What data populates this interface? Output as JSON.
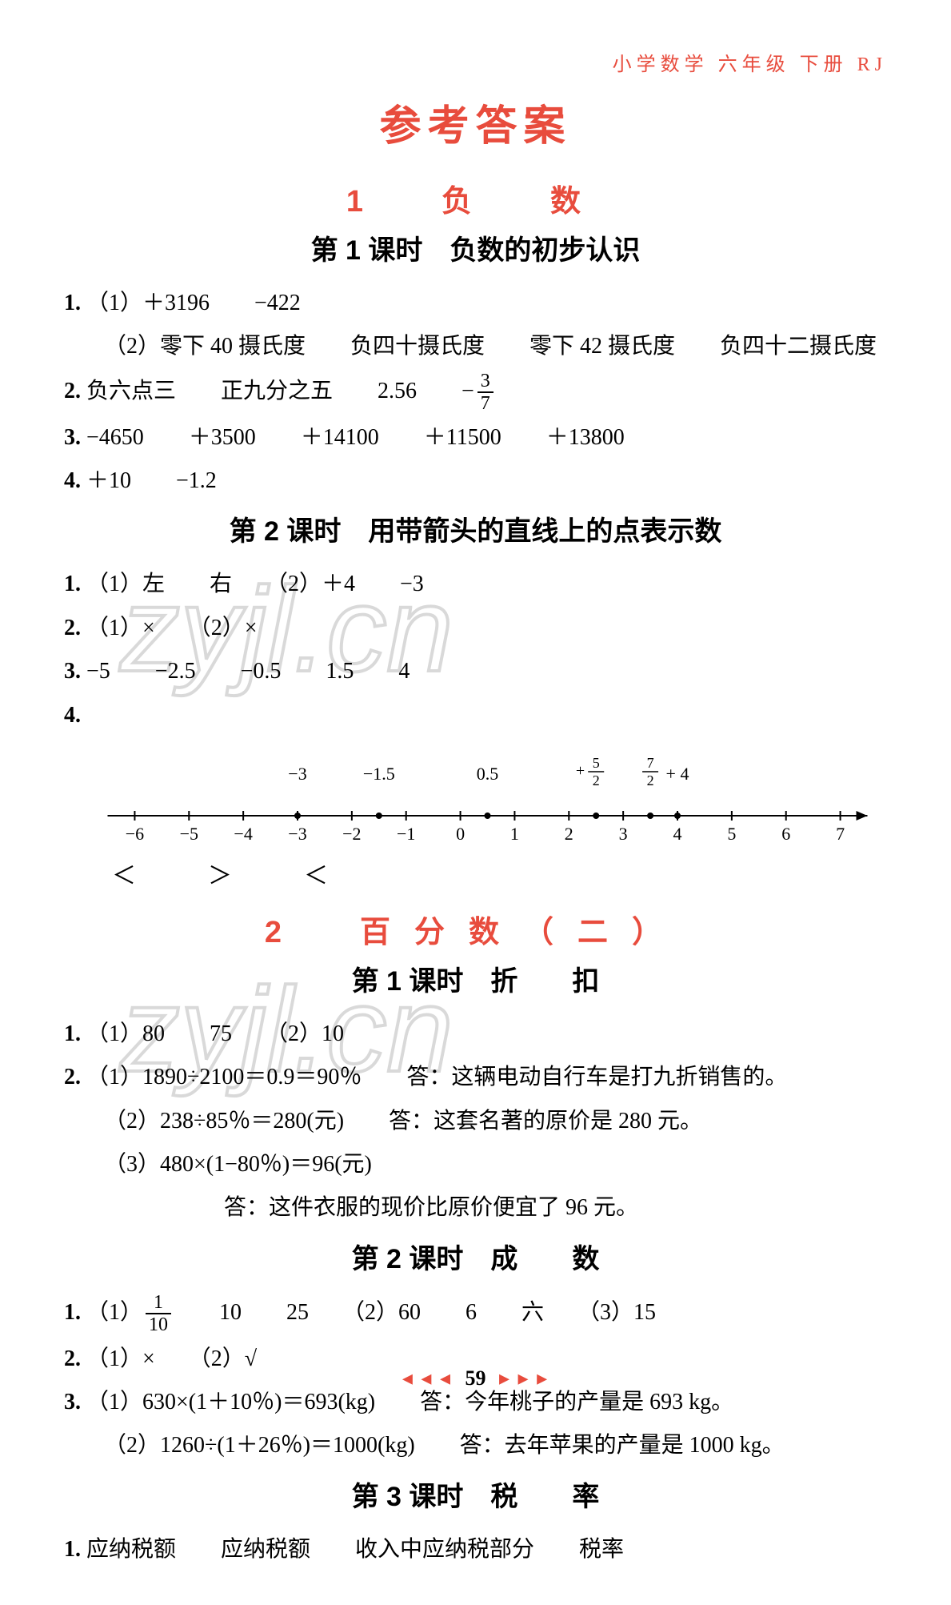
{
  "header": {
    "subject": "小学数学",
    "grade": "六年级",
    "volume": "下册",
    "edition": "RJ"
  },
  "main_title": "参考答案",
  "watermark": "zyjl.cn",
  "footer": {
    "left_arrows": "◂ ◂ ◂",
    "page": "59",
    "right_arrows": "▸ ▸ ▸"
  },
  "chapters": [
    {
      "title": "1　负　数",
      "lessons": [
        {
          "title": "第 1 课时　负数的初步认识",
          "answers": [
            {
              "n": "1.",
              "text": "（1）＋3196　　−422"
            },
            {
              "n": "",
              "text": "（2）零下 40 摄氏度　　负四十摄氏度　　零下 42 摄氏度　　负四十二摄氏度",
              "indent": 1
            },
            {
              "n": "2.",
              "text": "负六点三　　正九分之五　　2.56　　−",
              "has_frac": true,
              "frac_t": "3",
              "frac_b": "7"
            },
            {
              "n": "3.",
              "text": "−4650　　＋3500　　＋14100　　＋11500　　＋13800"
            },
            {
              "n": "4.",
              "text": "＋10　　−1.2"
            }
          ]
        },
        {
          "title": "第 2 课时　用带箭头的直线上的点表示数",
          "answers": [
            {
              "n": "1.",
              "text": "（1）左　　右　　（2）＋4　　−3"
            },
            {
              "n": "2.",
              "text": "（1）×　　（2）×"
            },
            {
              "n": "3.",
              "text": "−5　　−2.5　　−0.5　　1.5　　4"
            },
            {
              "n": "4.",
              "text": ""
            }
          ],
          "numberline": {
            "xmin": -6.5,
            "xmax": 7.5,
            "ticks": [
              -6,
              -5,
              -4,
              -3,
              -2,
              -1,
              0,
              1,
              2,
              3,
              4,
              5,
              6,
              7
            ],
            "tick_labels": [
              "−6",
              "−5",
              "−4",
              "−3",
              "−2",
              "−1",
              "0",
              "1",
              "2",
              "3",
              "4",
              "5",
              "6",
              "7"
            ],
            "points": [
              {
                "x": -3,
                "label": "−3",
                "type": "int"
              },
              {
                "x": -1.5,
                "label": "−1.5",
                "type": "dec"
              },
              {
                "x": 0.5,
                "label": "0.5",
                "type": "dec"
              },
              {
                "x": 2.5,
                "label": "+ 5/2",
                "type": "frac",
                "sign": "+",
                "ft": "5",
                "fb": "2"
              },
              {
                "x": 3.5,
                "label": "7/2",
                "type": "frac",
                "sign": "",
                "ft": "7",
                "fb": "2"
              },
              {
                "x": 4,
                "label": "+ 4",
                "type": "int"
              }
            ],
            "line_color": "#000",
            "point_radius": 4
          },
          "compare": "＜　＞　＜"
        }
      ]
    },
    {
      "title": "2　百分数（二）",
      "lessons": [
        {
          "title": "第 1 课时　折　　扣",
          "answers": [
            {
              "n": "1.",
              "text": "（1）80　　75　　（2）10"
            },
            {
              "n": "2.",
              "text": "（1）1890÷2100＝0.9＝90％　　答：这辆电动自行车是打九折销售的。"
            },
            {
              "n": "",
              "text": "（2）238÷85％＝280(元)　　答：这套名著的原价是 280 元。",
              "indent": 1
            },
            {
              "n": "",
              "text": "（3）480×(1−80％)＝96(元)",
              "indent": 1
            },
            {
              "n": "",
              "text": "答：这件衣服的现价比原价便宜了 96 元。",
              "indent": 2
            }
          ]
        },
        {
          "title": "第 2 课时　成　　数",
          "answers": [
            {
              "n": "1.",
              "text": "（1）",
              "has_frac": true,
              "frac_t": "1",
              "frac_b": "10",
              "tail": "　　10　　25　　（2）60　　6　　六　　（3）15"
            },
            {
              "n": "2.",
              "text": "（1）×　　（2）√"
            },
            {
              "n": "3.",
              "text": "（1）630×(1＋10％)＝693(kg)　　答：今年桃子的产量是 693 kg。"
            },
            {
              "n": "",
              "text": "（2）1260÷(1＋26％)＝1000(kg)　　答：去年苹果的产量是 1000 kg。",
              "indent": 1
            }
          ]
        },
        {
          "title": "第 3 课时　税　　率",
          "answers": [
            {
              "n": "1.",
              "text": "应纳税额　　应纳税额　　收入中应纳税部分　　税率"
            }
          ]
        }
      ]
    }
  ]
}
